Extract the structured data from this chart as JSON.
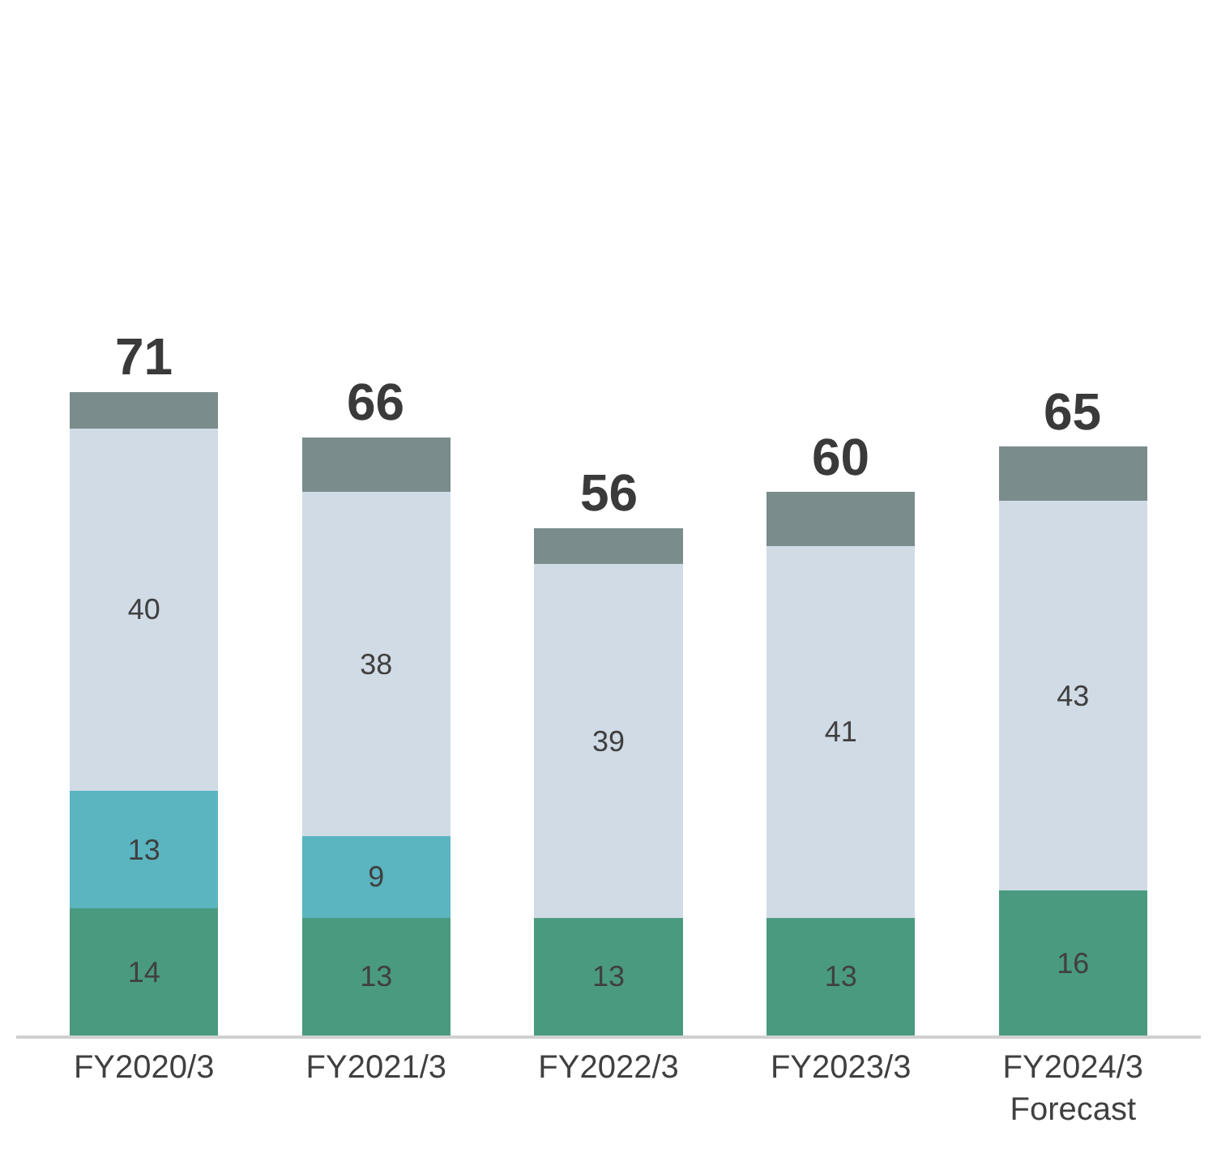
{
  "chart_data": {
    "type": "bar",
    "stacked": true,
    "categories": [
      "FY2020/3",
      "FY2021/3",
      "FY2022/3",
      "FY2023/3",
      "FY2024/3\nForecast"
    ],
    "series": [
      {
        "color": "#4a9a80",
        "values": [
          14,
          13,
          13,
          13,
          16
        ],
        "value_labels": [
          "14",
          "13",
          "13",
          "13",
          "16"
        ]
      },
      {
        "color": "#5ab5c0",
        "values": [
          13,
          9,
          null,
          null,
          null
        ],
        "value_labels": [
          "13",
          "9",
          null,
          null,
          null
        ]
      },
      {
        "color": "#d0dbe6",
        "values": [
          40,
          38,
          39,
          41,
          43
        ],
        "value_labels": [
          "40",
          "38",
          "39",
          "41",
          "43"
        ]
      },
      {
        "color": "#7a8c8c",
        "values": [
          4,
          6,
          4,
          6,
          6
        ]
      }
    ],
    "totals": [
      "71",
      "66",
      "56",
      "60",
      "65"
    ],
    "tick_labels": "x"
  }
}
